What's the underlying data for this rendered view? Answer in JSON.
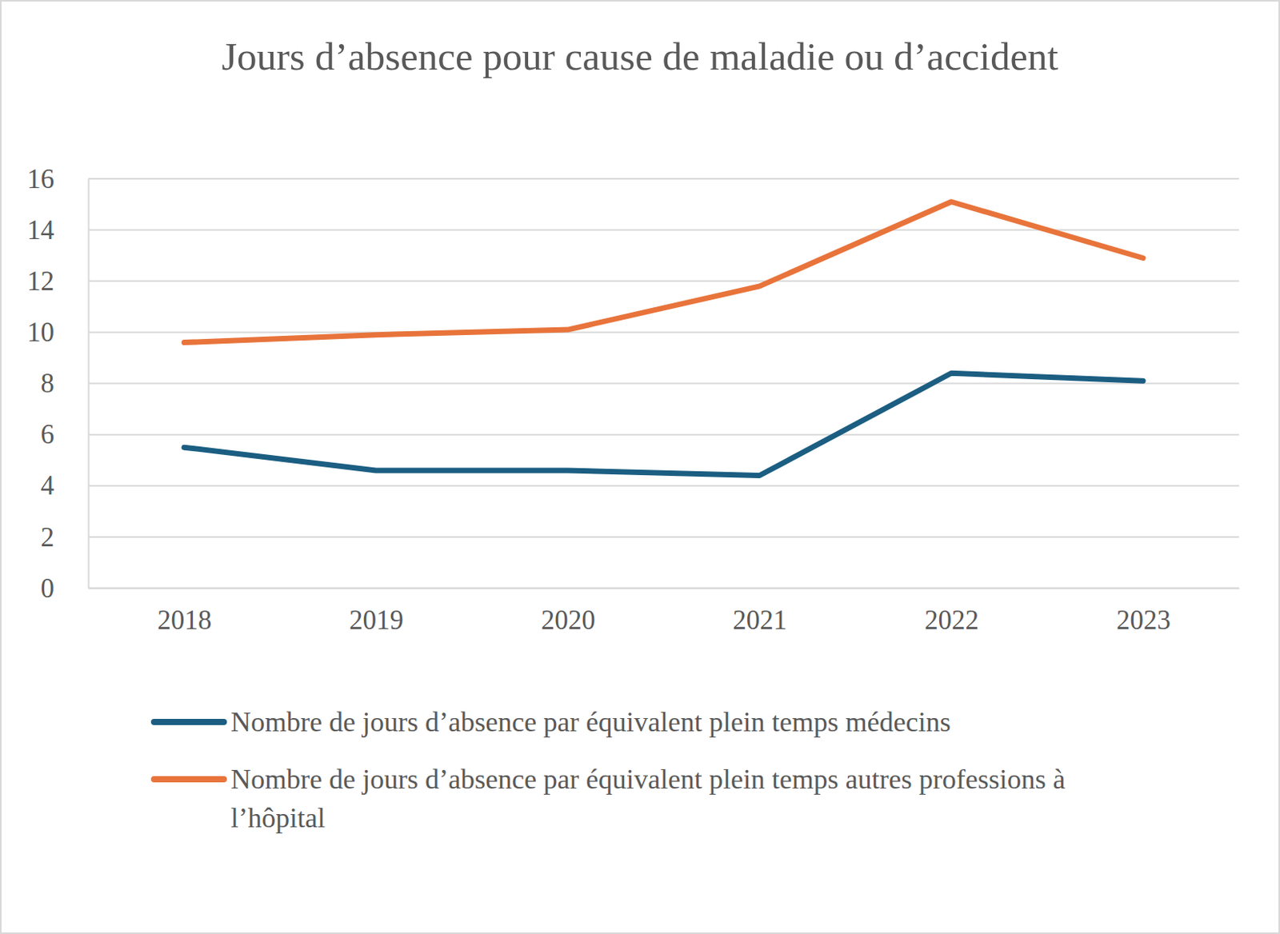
{
  "chart_data": {
    "type": "line",
    "title": "Jours d’absence pour cause de maladie ou d’accident",
    "categories": [
      "2018",
      "2019",
      "2020",
      "2021",
      "2022",
      "2023"
    ],
    "series": [
      {
        "name": "Nombre de jours d’absence par équivalent plein temps médecins",
        "color": "#1b5e82",
        "values": [
          5.5,
          4.6,
          4.6,
          4.4,
          8.4,
          8.1
        ]
      },
      {
        "name": "Nombre de jours d’absence par équivalent plein temps autres professions à l’hôpital",
        "color": "#e8743b",
        "values": [
          9.6,
          9.9,
          10.1,
          11.8,
          15.1,
          12.9
        ]
      }
    ],
    "ylim": [
      0,
      16
    ],
    "yticks": [
      0,
      2,
      4,
      6,
      8,
      10,
      12,
      14,
      16
    ],
    "grid": true,
    "legend": "bottom"
  }
}
